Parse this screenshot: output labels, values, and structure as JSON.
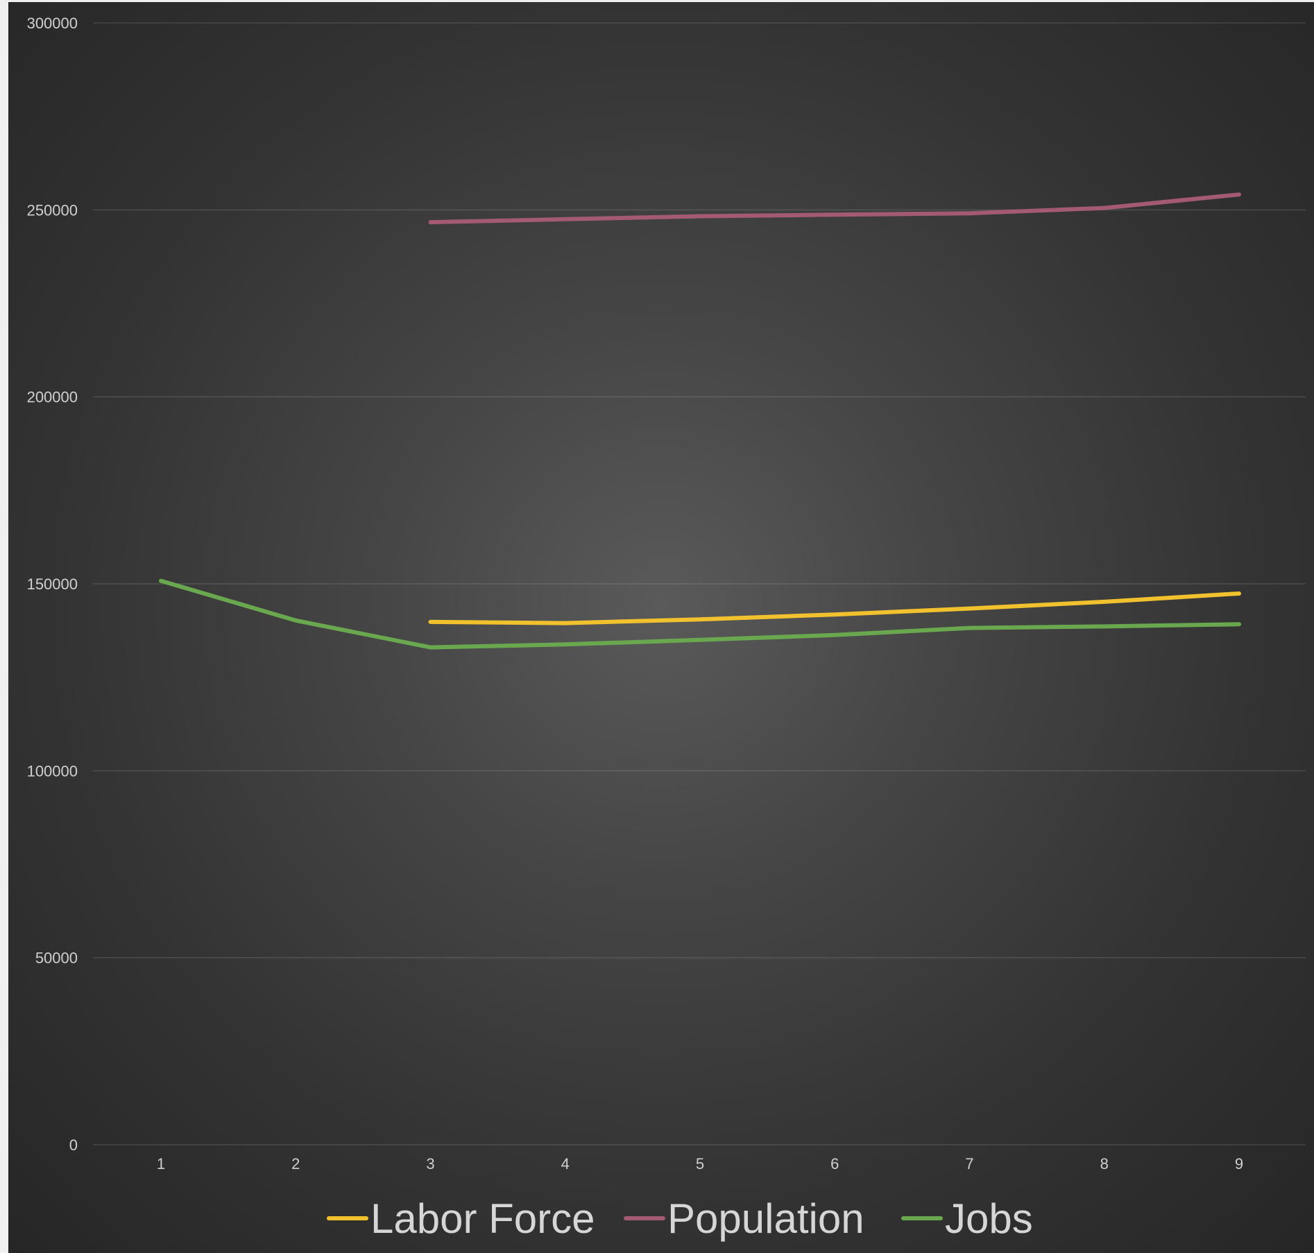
{
  "chart_data": {
    "type": "line",
    "x": [
      1,
      2,
      3,
      4,
      5,
      6,
      7,
      8,
      9
    ],
    "ylim": [
      0,
      300000
    ],
    "yticks": [
      0,
      50000,
      100000,
      150000,
      200000,
      250000,
      300000
    ],
    "grid": true,
    "legend_position": "bottom",
    "series": [
      {
        "name": "Labor Force",
        "color": "#f2c12e",
        "values": [
          null,
          null,
          139800,
          139500,
          140500,
          141800,
          143400,
          145200,
          147400
        ]
      },
      {
        "name": "Population",
        "color": "#a35a72",
        "values": [
          null,
          null,
          246700,
          247500,
          248300,
          248700,
          249100,
          250500,
          254100
        ]
      },
      {
        "name": "Jobs",
        "color": "#6aa84f",
        "values": [
          150800,
          140200,
          133000,
          133800,
          135000,
          136300,
          138200,
          138600,
          139200
        ]
      }
    ]
  }
}
